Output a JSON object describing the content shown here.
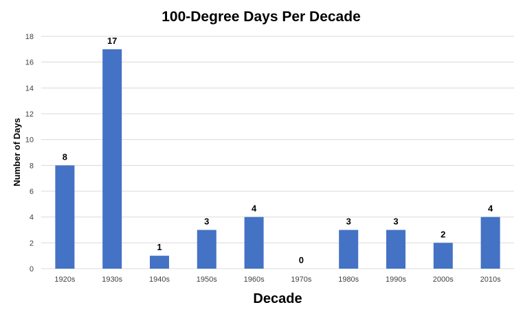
{
  "chart_data": {
    "type": "bar",
    "title": "100-Degree Days Per Decade",
    "xlabel": "Decade",
    "ylabel": "Number of Days",
    "categories": [
      "1920s",
      "1930s",
      "1940s",
      "1950s",
      "1960s",
      "1970s",
      "1980s",
      "1990s",
      "2000s",
      "2010s"
    ],
    "values": [
      8,
      17,
      1,
      3,
      4,
      0,
      3,
      3,
      2,
      4
    ],
    "ylim": [
      0,
      18
    ],
    "yticks": [
      0,
      2,
      4,
      6,
      8,
      10,
      12,
      14,
      16,
      18
    ],
    "grid": true,
    "legend": "none",
    "data_labels": true,
    "bar_color": "#4472C4",
    "grid_color": "#D9D9D9"
  }
}
